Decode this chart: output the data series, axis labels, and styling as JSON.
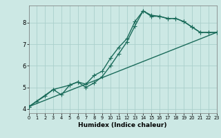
{
  "title": "",
  "xlabel": "Humidex (Indice chaleur)",
  "ylabel": "",
  "bg_color": "#cce8e4",
  "grid_color": "#aacfcb",
  "line_color": "#1a6b5a",
  "line_width": 1.0,
  "marker": "+",
  "marker_size": 4,
  "marker_edge_width": 0.8,
  "xlim": [
    0,
    23
  ],
  "ylim": [
    3.8,
    8.8
  ],
  "xticks": [
    0,
    1,
    2,
    3,
    4,
    5,
    6,
    7,
    8,
    9,
    10,
    11,
    12,
    13,
    14,
    15,
    16,
    17,
    18,
    19,
    20,
    21,
    22,
    23
  ],
  "yticks": [
    4,
    5,
    6,
    7,
    8
  ],
  "line1_x": [
    0,
    1,
    2,
    3,
    4,
    5,
    6,
    7,
    8,
    9,
    10,
    11,
    12,
    13,
    14,
    15,
    16,
    17,
    18,
    19,
    20,
    21,
    22,
    23
  ],
  "line1_y": [
    4.1,
    4.35,
    4.6,
    4.9,
    4.65,
    5.1,
    5.25,
    5.15,
    5.55,
    5.75,
    6.35,
    6.85,
    7.25,
    8.05,
    8.55,
    8.3,
    8.3,
    8.2,
    8.2,
    8.05,
    7.8,
    7.55,
    7.55,
    7.55
  ],
  "line2_x": [
    0,
    3,
    5,
    6,
    7,
    8,
    9,
    10,
    11,
    12,
    13,
    14,
    15,
    16,
    17,
    18,
    19,
    20,
    21,
    22,
    23
  ],
  "line2_y": [
    4.1,
    4.9,
    5.1,
    5.25,
    5.0,
    5.2,
    5.5,
    6.0,
    6.55,
    7.1,
    7.85,
    8.55,
    8.35,
    8.3,
    8.2,
    8.2,
    8.05,
    7.8,
    7.55,
    7.55,
    7.55
  ],
  "line3_x": [
    0,
    23
  ],
  "line3_y": [
    4.1,
    7.55
  ],
  "xlabel_fontsize": 6.5,
  "xlabel_fontweight": "bold",
  "xtick_fontsize": 4.8,
  "ytick_fontsize": 6.0
}
